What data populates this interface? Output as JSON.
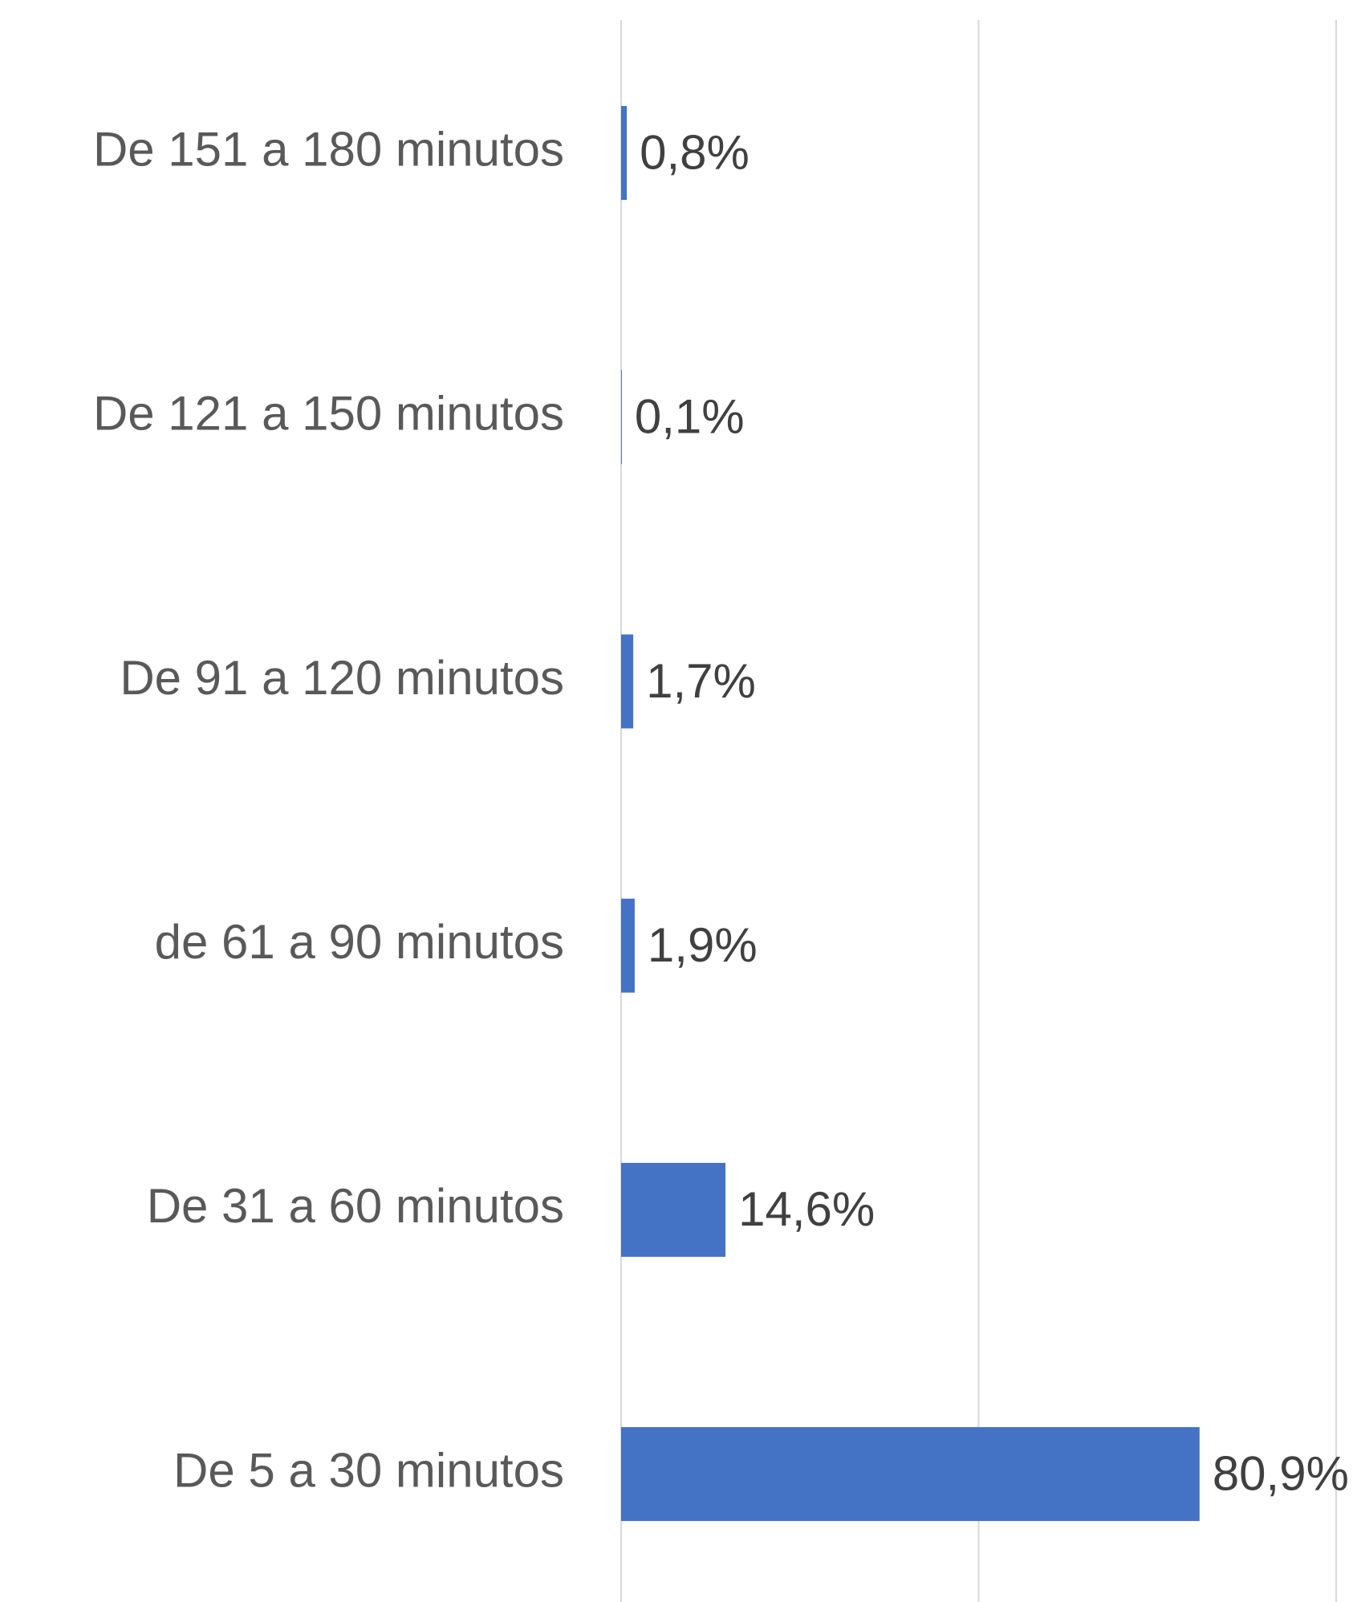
{
  "chart_data": {
    "type": "bar",
    "orientation": "horizontal",
    "categories": [
      "De 151 a 180 minutos",
      "De 121 a 150 minutos",
      "De 91 a 120 minutos",
      "de 61 a 90 minutos",
      "De 31 a 60 minutos",
      "De 5 a 30 minutos"
    ],
    "values": [
      0.8,
      0.1,
      1.7,
      1.9,
      14.6,
      80.9
    ],
    "value_labels": [
      "0,8%",
      "0,1%",
      "1,7%",
      "1,9%",
      "14,6%",
      "80,9%"
    ],
    "color": "#4472c4",
    "xlim": [
      0,
      100
    ],
    "xticks": [
      0,
      50,
      100
    ],
    "grid": true
  }
}
